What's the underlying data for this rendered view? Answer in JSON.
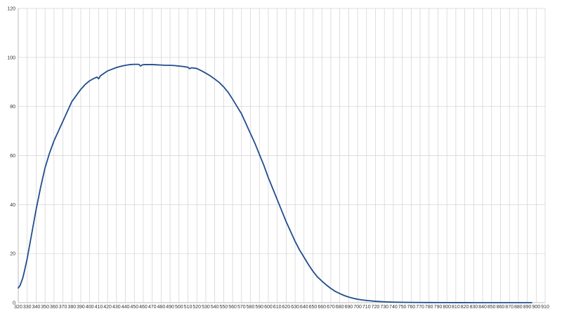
{
  "chart_data": {
    "type": "line",
    "title": "",
    "xlabel": "",
    "ylabel": "",
    "xlim": [
      320,
      910
    ],
    "ylim": [
      0,
      120
    ],
    "x_ticks": [
      320,
      330,
      340,
      350,
      360,
      370,
      380,
      390,
      400,
      410,
      420,
      430,
      440,
      450,
      460,
      470,
      480,
      490,
      500,
      510,
      520,
      530,
      540,
      550,
      560,
      570,
      580,
      590,
      600,
      610,
      620,
      630,
      640,
      650,
      660,
      670,
      680,
      690,
      700,
      710,
      720,
      730,
      740,
      750,
      760,
      770,
      780,
      790,
      800,
      810,
      820,
      830,
      840,
      850,
      860,
      870,
      880,
      890,
      900,
      910
    ],
    "y_ticks": [
      0,
      20,
      40,
      60,
      80,
      100,
      120
    ],
    "grid": true,
    "legend": "none",
    "series": [
      {
        "color": "#1f4e8c",
        "x": [
          320,
          322,
          325,
          327,
          330,
          335,
          340,
          345,
          350,
          355,
          360,
          365,
          370,
          375,
          380,
          385,
          390,
          395,
          400,
          405,
          408,
          410,
          412,
          415,
          420,
          425,
          430,
          435,
          440,
          445,
          450,
          455,
          457,
          459,
          461,
          465,
          470,
          475,
          480,
          485,
          490,
          495,
          500,
          505,
          510,
          512,
          514,
          520,
          525,
          530,
          535,
          540,
          545,
          550,
          555,
          560,
          565,
          570,
          575,
          580,
          585,
          590,
          595,
          600,
          605,
          610,
          615,
          620,
          625,
          630,
          635,
          640,
          645,
          650,
          655,
          660,
          665,
          670,
          675,
          680,
          685,
          690,
          695,
          700,
          705,
          710,
          720,
          730,
          740,
          750,
          760,
          770,
          780,
          790,
          800,
          810,
          820,
          830,
          840,
          850,
          860,
          870,
          880,
          890,
          895
        ],
        "y": [
          6,
          7,
          10,
          13,
          18,
          28,
          38,
          47,
          55,
          61,
          66,
          70,
          74,
          78,
          82,
          84.5,
          87,
          89,
          90.5,
          91.5,
          92,
          91.3,
          92.5,
          93.3,
          94.5,
          95.2,
          95.9,
          96.4,
          96.8,
          97.1,
          97.2,
          97.2,
          96.5,
          97,
          97.1,
          97.1,
          97.1,
          97.0,
          96.9,
          96.8,
          96.8,
          96.7,
          96.5,
          96.3,
          96.0,
          95.4,
          95.8,
          95.5,
          94.6,
          93.6,
          92.5,
          91.2,
          89.8,
          88,
          85.8,
          83,
          80,
          77,
          73,
          69,
          65,
          60.5,
          56,
          51,
          46.5,
          42,
          37.5,
          33,
          29,
          25,
          21.5,
          18.5,
          15.5,
          12.8,
          10.5,
          8.8,
          7.2,
          5.8,
          4.6,
          3.7,
          2.9,
          2.3,
          1.8,
          1.4,
          1.1,
          0.9,
          0.55,
          0.35,
          0.22,
          0.15,
          0.1,
          0.07,
          0.05,
          0.04,
          0.03,
          0.02,
          0.02,
          0.01,
          0.01,
          0.01,
          0.01,
          0.01,
          0.01,
          0.01,
          0.01
        ]
      }
    ]
  }
}
